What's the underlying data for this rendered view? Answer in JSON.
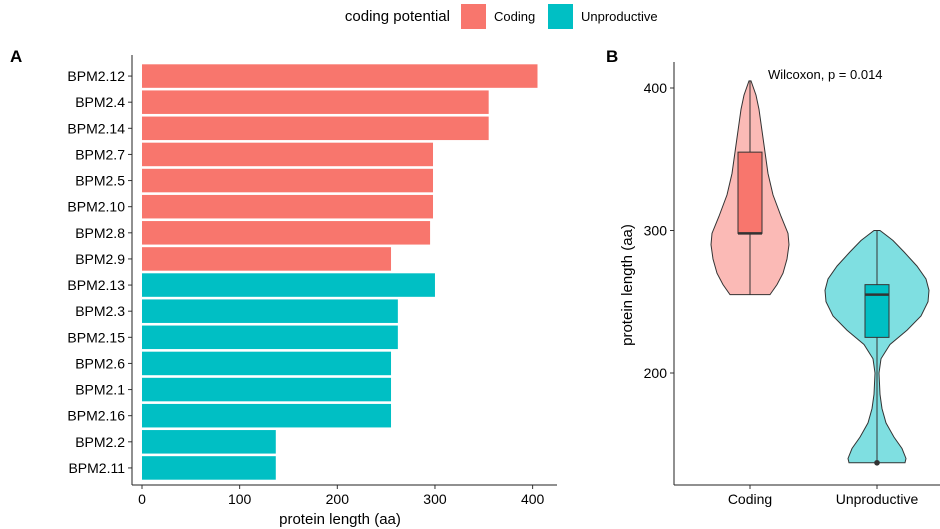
{
  "legend": {
    "title": "coding potential",
    "items": [
      {
        "label": "Coding",
        "color": "#F8766D"
      },
      {
        "label": "Unproductive",
        "color": "#00BFC4"
      }
    ]
  },
  "chart_data": [
    {
      "panel": "A",
      "type": "bar",
      "orientation": "horizontal",
      "xlabel": "protein length (aa)",
      "ylabel": "",
      "xlim": [
        0,
        420
      ],
      "xticks": [
        0,
        100,
        200,
        300,
        400
      ],
      "grid": false,
      "categories": [
        "BPM2.12",
        "BPM2.4",
        "BPM2.14",
        "BPM2.7",
        "BPM2.5",
        "BPM2.10",
        "BPM2.8",
        "BPM2.9",
        "BPM2.13",
        "BPM2.3",
        "BPM2.15",
        "BPM2.6",
        "BPM2.1",
        "BPM2.16",
        "BPM2.2",
        "BPM2.11"
      ],
      "values": [
        405,
        355,
        355,
        298,
        298,
        298,
        295,
        255,
        300,
        262,
        262,
        255,
        255,
        255,
        137,
        137
      ],
      "group": [
        "Coding",
        "Coding",
        "Coding",
        "Coding",
        "Coding",
        "Coding",
        "Coding",
        "Coding",
        "Unproductive",
        "Unproductive",
        "Unproductive",
        "Unproductive",
        "Unproductive",
        "Unproductive",
        "Unproductive",
        "Unproductive"
      ]
    },
    {
      "panel": "B",
      "type": "violin",
      "xlabel": "",
      "ylabel": "protein length (aa)",
      "ylim": [
        130,
        420
      ],
      "yticks": [
        200,
        300,
        400
      ],
      "grid": false,
      "categories": [
        "Coding",
        "Unproductive"
      ],
      "annotation": "Wilcoxon, p = 0.014",
      "series": [
        {
          "category": "Coding",
          "min": 255,
          "q1": 298,
          "median": 298,
          "q3": 355,
          "max": 405,
          "outliers": []
        },
        {
          "category": "Unproductive",
          "min": 137,
          "q1": 225,
          "median": 255,
          "q3": 262,
          "max": 300,
          "outliers": [
            137
          ]
        }
      ]
    }
  ]
}
